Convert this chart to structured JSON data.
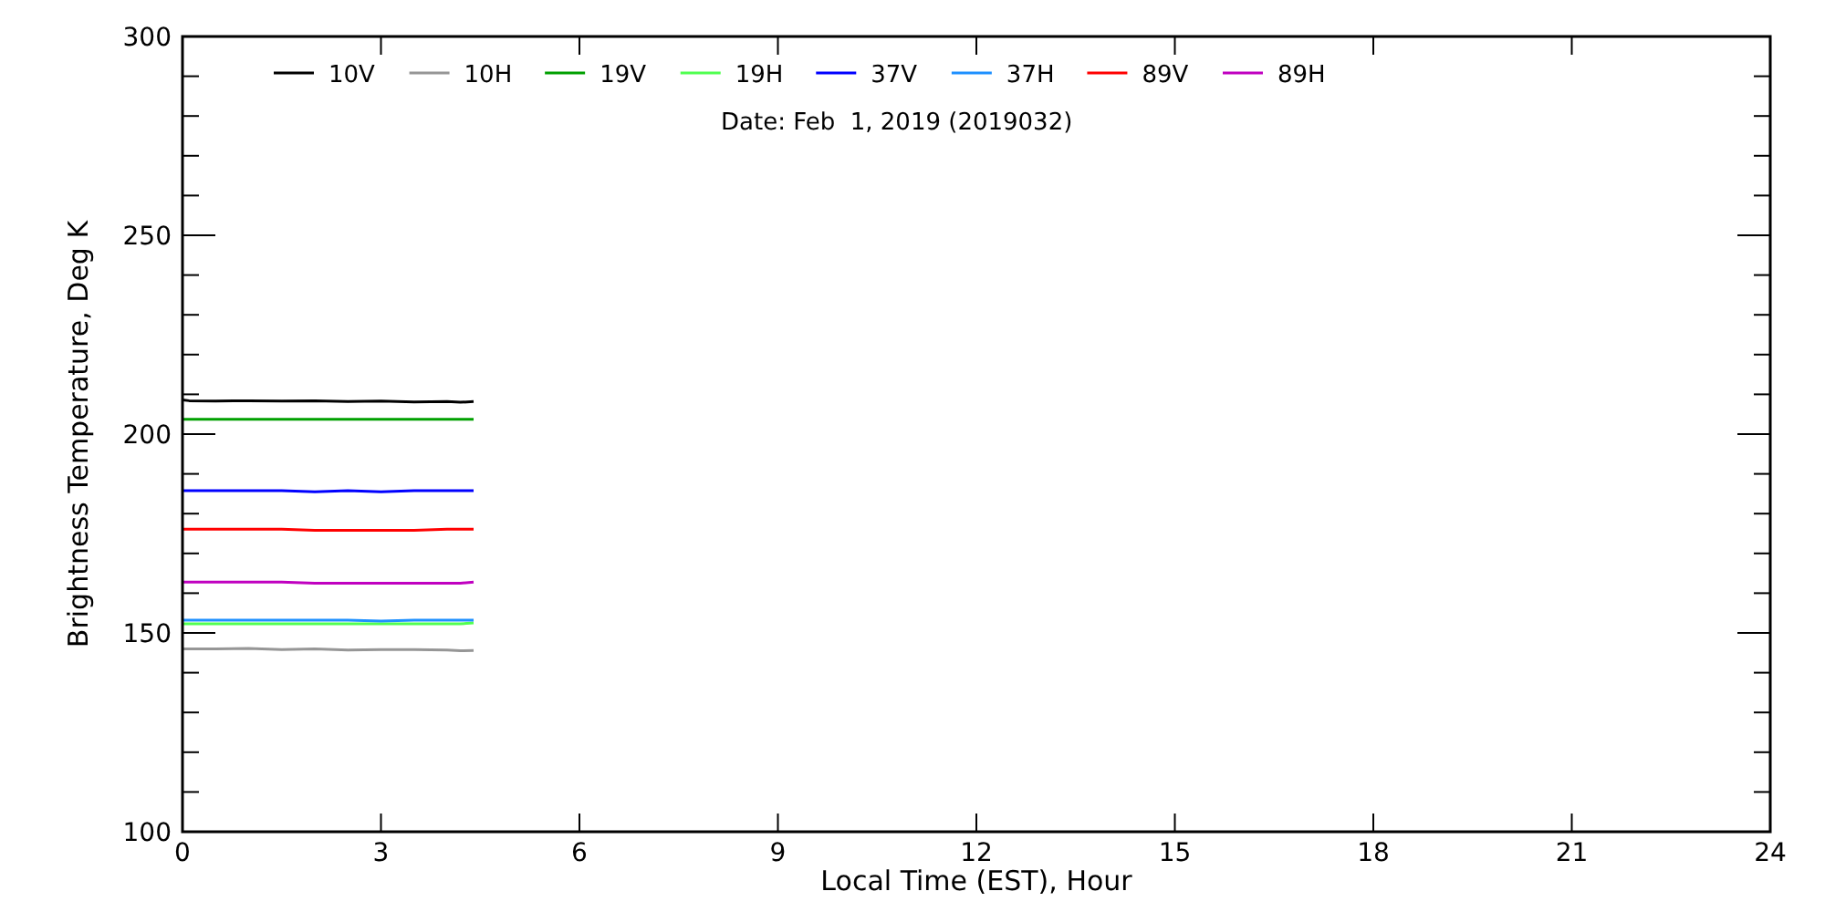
{
  "chart_data": {
    "type": "line",
    "xlabel": "Local Time (EST), Hour",
    "ylabel": "Brightness Temperature, Deg K",
    "annotations": [
      "Date: Feb  1, 2019 (2019032)"
    ],
    "x": [
      0,
      0.1,
      0.5,
      1,
      1.5,
      2,
      2.5,
      3,
      3.5,
      4,
      4.2,
      4.4
    ],
    "xlim": [
      0,
      24
    ],
    "xticks": [
      0,
      3,
      6,
      9,
      12,
      15,
      18,
      21,
      24
    ],
    "ylim": [
      100,
      300
    ],
    "yticks": [
      100,
      150,
      200,
      250,
      300
    ],
    "grid": false,
    "legend": "top",
    "marker": "none",
    "line_style": "solid",
    "series": [
      {
        "name": "10V",
        "color": "#000000",
        "values": [
          208.6,
          208.4,
          208.3,
          208.4,
          208.3,
          208.4,
          208.2,
          208.3,
          208.1,
          208.2,
          208.0,
          208.2
        ]
      },
      {
        "name": "10H",
        "color": "#969696",
        "values": [
          146.0,
          146.0,
          146.0,
          146.1,
          145.8,
          146.0,
          145.7,
          145.8,
          145.8,
          145.7,
          145.5,
          145.6
        ]
      },
      {
        "name": "19V",
        "color": "#00a000",
        "values": [
          203.7,
          203.7,
          203.7,
          203.7,
          203.7,
          203.7,
          203.7,
          203.7,
          203.7,
          203.7,
          203.7,
          203.7
        ]
      },
      {
        "name": "19H",
        "color": "#50ff50",
        "values": [
          152.3,
          152.3,
          152.3,
          152.3,
          152.3,
          152.3,
          152.3,
          152.3,
          152.3,
          152.3,
          152.3,
          152.5
        ]
      },
      {
        "name": "37V",
        "color": "#0000ff",
        "values": [
          185.8,
          185.8,
          185.8,
          185.8,
          185.8,
          185.5,
          185.8,
          185.5,
          185.8,
          185.8,
          185.8,
          185.8
        ]
      },
      {
        "name": "37H",
        "color": "#1e90ff",
        "values": [
          153.2,
          153.2,
          153.2,
          153.2,
          153.2,
          153.2,
          153.2,
          153.0,
          153.2,
          153.2,
          153.2,
          153.2
        ]
      },
      {
        "name": "89V",
        "color": "#ff0000",
        "values": [
          176.1,
          176.1,
          176.1,
          176.1,
          176.1,
          175.8,
          175.8,
          175.8,
          175.8,
          176.1,
          176.1,
          176.1
        ]
      },
      {
        "name": "89H",
        "color": "#c000c0",
        "values": [
          162.8,
          162.8,
          162.8,
          162.8,
          162.8,
          162.5,
          162.5,
          162.5,
          162.5,
          162.5,
          162.5,
          162.8
        ]
      }
    ]
  }
}
